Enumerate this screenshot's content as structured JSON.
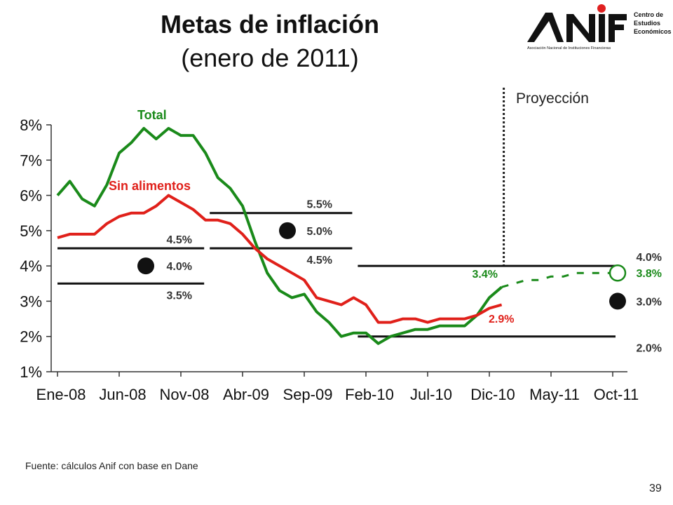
{
  "header": {
    "title": "Metas de inflación",
    "subtitle": "(enero de 2011)"
  },
  "logo": {
    "name": "ANIF",
    "tagline": "Asociación Nacional de Instituciones Financieras",
    "unit_lines": [
      "Centro de",
      "Estudios",
      "Económicos"
    ],
    "accent_color": "#e02020"
  },
  "footer": {
    "source": "Fuente: cálculos Anif con base en Dane",
    "page_number": "39"
  },
  "chart_data": {
    "type": "line",
    "ylim": [
      0.01,
      0.08
    ],
    "y_ticks": [
      "1%",
      "2%",
      "3%",
      "4%",
      "5%",
      "6%",
      "7%",
      "8%"
    ],
    "x_ticks": [
      "Ene-08",
      "Jun-08",
      "Nov-08",
      "Abr-09",
      "Sep-09",
      "Feb-10",
      "Jul-10",
      "Dic-10",
      "May-11",
      "Oct-11"
    ],
    "projection_label": "Proyección",
    "series": [
      {
        "name": "Total",
        "color": "#1a8a1a",
        "values": [
          0.06,
          0.064,
          0.059,
          0.057,
          0.063,
          0.072,
          0.075,
          0.079,
          0.076,
          0.079,
          0.077,
          0.077,
          0.072,
          0.065,
          0.062,
          0.057,
          0.047,
          0.038,
          0.033,
          0.031,
          0.032,
          0.027,
          0.024,
          0.02,
          0.021,
          0.021,
          0.018,
          0.02,
          0.021,
          0.022,
          0.022,
          0.023,
          0.023,
          0.023,
          0.026,
          0.031,
          0.034
        ]
      },
      {
        "name": "Sin alimentos",
        "color": "#e0201a",
        "values": [
          0.048,
          0.049,
          0.049,
          0.049,
          0.052,
          0.054,
          0.055,
          0.055,
          0.057,
          0.06,
          0.058,
          0.056,
          0.053,
          0.053,
          0.052,
          0.049,
          0.045,
          0.042,
          0.04,
          0.038,
          0.036,
          0.031,
          0.03,
          0.029,
          0.031,
          0.029,
          0.024,
          0.024,
          0.025,
          0.025,
          0.024,
          0.025,
          0.025,
          0.025,
          0.026,
          0.028,
          0.029
        ]
      },
      {
        "name": "Proyección Total",
        "color": "#1a8a1a",
        "dashed": true,
        "start_index": 36,
        "values": [
          0.034,
          0.035,
          0.036,
          0.036,
          0.037,
          0.037,
          0.038,
          0.038,
          0.038,
          0.038,
          0.038
        ]
      }
    ],
    "target_bands": [
      {
        "start_index": 0,
        "end_index": 12,
        "lines": [
          {
            "value": 0.045,
            "label": "4.5%"
          },
          {
            "value": 0.035,
            "label": "3.5%"
          }
        ],
        "target": {
          "value": 0.04,
          "label": "4.0%"
        }
      },
      {
        "start_index": 12,
        "end_index": 24,
        "lines": [
          {
            "value": 0.055,
            "label": "5.5%"
          },
          {
            "value": 0.045,
            "label": "4.5%"
          }
        ],
        "target": {
          "value": 0.05,
          "label": "5.0%"
        }
      },
      {
        "start_index": 24,
        "end_index": 47,
        "lines": [
          {
            "value": 0.04,
            "label": "4.0%"
          },
          {
            "value": 0.02,
            "label": "2.0%"
          }
        ],
        "target": {
          "value": 0.03,
          "label": "3.0%"
        }
      }
    ],
    "annotations": {
      "total_label": "Total",
      "sin_alimentos_label": "Sin alimentos",
      "total_last": "3.4%",
      "sin_alimentos_last": "2.9%",
      "projection_end": "3.8%"
    }
  }
}
